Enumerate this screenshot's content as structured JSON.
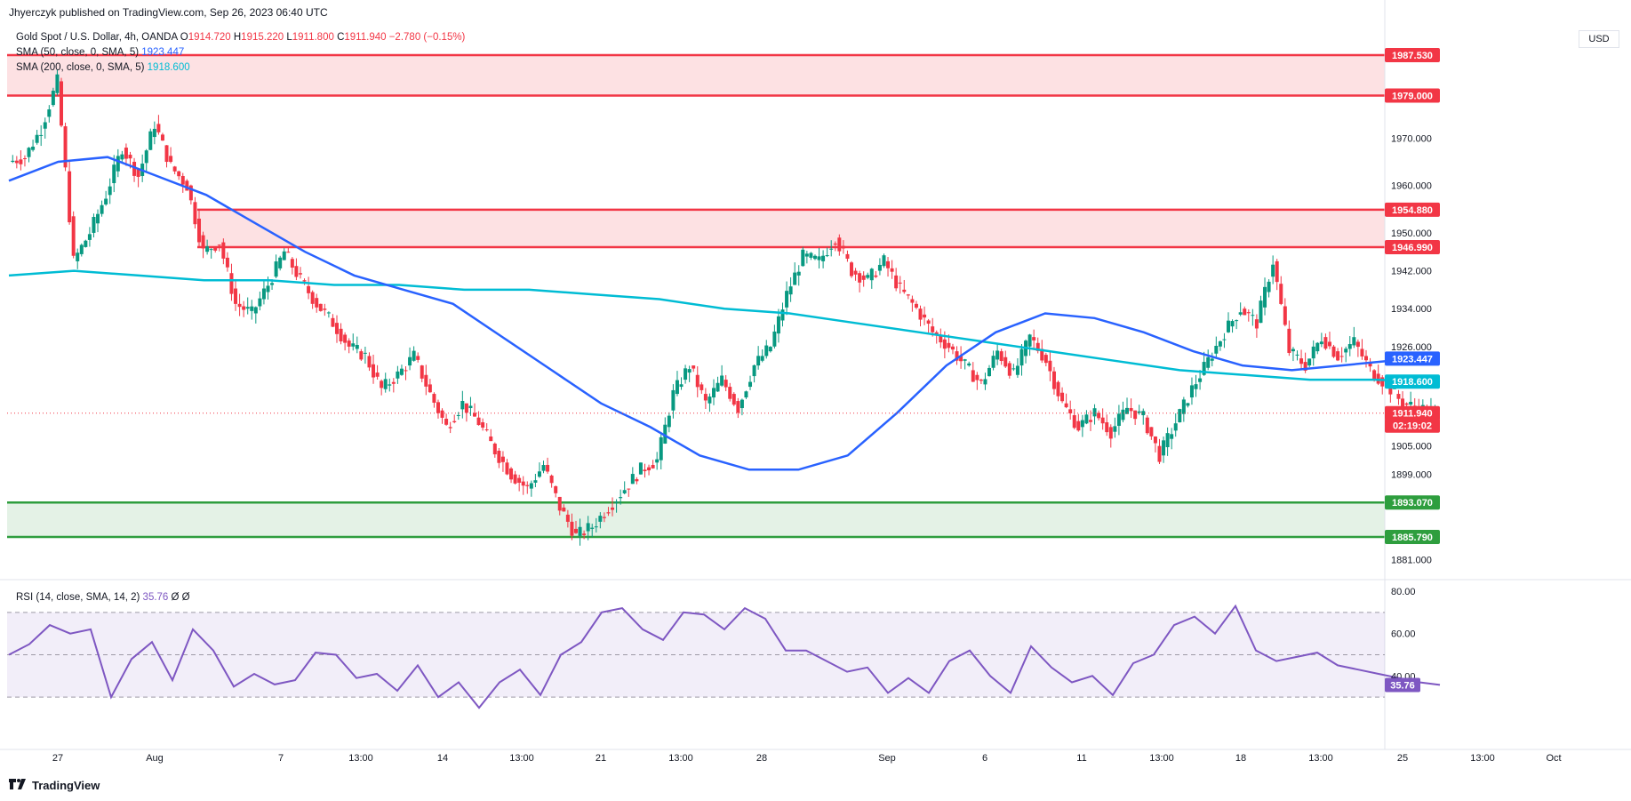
{
  "header": {
    "publisher": "Jhyerczyk published on TradingView.com, Sep 26, 2023 06:40 UTC"
  },
  "legend": {
    "symbol": "Gold Spot / U.S. Dollar, 4h, OANDA",
    "open_label": "O",
    "open": "1914.720",
    "high_label": "H",
    "high": "1915.220",
    "low_label": "L",
    "low": "1911.800",
    "close_label": "C",
    "close": "1911.940",
    "change": "−2.780 (−0.15%)",
    "sma50_label": "SMA (50, close, 0, SMA, 5)",
    "sma50_value": "1923.447",
    "sma200_label": "SMA (200, close, 0, SMA, 5)",
    "sma200_value": "1918.600"
  },
  "rsi_legend": {
    "label": "RSI (14, close, SMA, 14, 2)",
    "value": "35.76",
    "extra": "Ø Ø"
  },
  "currency": "USD",
  "footer": {
    "brand": "TradingView"
  },
  "colors": {
    "resistance": "#f23645",
    "support": "#2e9e3e",
    "sma50": "#2962ff",
    "sma200": "#00bcd4",
    "rsi": "#7e57c2",
    "candle_up": "#089981",
    "candle_down": "#f23645"
  },
  "chart_data": {
    "type": "candlestick",
    "symbol": "XAUUSD",
    "timeframe": "4h",
    "ylim": [
      1876,
      1992
    ],
    "x_ticks": [
      "27",
      "Aug",
      "7",
      "13:00",
      "14",
      "13:00",
      "21",
      "13:00",
      "28",
      "Sep",
      "6",
      "11",
      "13:00",
      "18",
      "13:00",
      "25",
      "13:00",
      "Oct"
    ],
    "y_ticks": [
      "1970.000",
      "1960.000",
      "1950.000",
      "1942.000",
      "1934.000",
      "1926.000",
      "1905.000",
      "1899.000",
      "1881.000"
    ],
    "zones": [
      {
        "type": "resistance",
        "from": 1979.0,
        "to": 1987.53
      },
      {
        "type": "resistance",
        "from": 1946.99,
        "to": 1954.88
      },
      {
        "type": "support",
        "from": 1885.79,
        "to": 1893.07
      }
    ],
    "price_labels": [
      {
        "value": "1987.530",
        "kind": "resistance"
      },
      {
        "value": "1979.000",
        "kind": "resistance"
      },
      {
        "value": "1954.880",
        "kind": "resistance"
      },
      {
        "value": "1946.990",
        "kind": "resistance"
      },
      {
        "value": "1923.447",
        "kind": "sma50"
      },
      {
        "value": "1918.600",
        "kind": "sma200"
      },
      {
        "value": "1911.940",
        "kind": "last"
      },
      {
        "value": "02:19:02",
        "kind": "countdown"
      },
      {
        "value": "1893.070",
        "kind": "support"
      },
      {
        "value": "1885.790",
        "kind": "support"
      }
    ],
    "close_path": [
      1965,
      1966,
      1972,
      1982,
      1944,
      1950,
      1958,
      1968,
      1962,
      1973,
      1964,
      1960,
      1946,
      1948,
      1935,
      1933,
      1939,
      1946,
      1940,
      1935,
      1931,
      1926,
      1924,
      1917,
      1920,
      1924,
      1916,
      1909,
      1914,
      1910,
      1904,
      1899,
      1896,
      1901,
      1892,
      1886,
      1888,
      1892,
      1896,
      1900,
      1902,
      1916,
      1922,
      1914,
      1919,
      1913,
      1922,
      1926,
      1937,
      1945,
      1944,
      1949,
      1942,
      1940,
      1944,
      1938,
      1934,
      1929,
      1926,
      1922,
      1918,
      1925,
      1920,
      1928,
      1923,
      1914,
      1909,
      1912,
      1908,
      1913,
      1911,
      1903,
      1910,
      1917,
      1923,
      1929,
      1934,
      1931,
      1944,
      1925,
      1922,
      1928,
      1924,
      1927,
      1921,
      1918,
      1914,
      1913,
      1912
    ],
    "sma50": [
      1961,
      1965,
      1966,
      1962,
      1958,
      1952,
      1946,
      1941,
      1938,
      1935,
      1928,
      1921,
      1914,
      1909,
      1903,
      1900,
      1900,
      1903,
      1912,
      1922,
      1929,
      1933,
      1932,
      1929,
      1925,
      1922,
      1921,
      1922,
      1923,
      1923
    ],
    "sma200": [
      1941,
      1942,
      1941,
      1940,
      1940,
      1939,
      1939,
      1938,
      1938,
      1937,
      1936,
      1934,
      1933,
      1931,
      1929,
      1927,
      1925,
      1923,
      1921,
      1920,
      1919,
      1919,
      1918.6
    ],
    "rsi": {
      "ylim": [
        20,
        80
      ],
      "y_ticks": [
        "80.00",
        "60.00",
        "40.00"
      ],
      "levels": [
        70,
        50,
        30
      ],
      "values": [
        50,
        55,
        64,
        60,
        62,
        30,
        48,
        56,
        38,
        62,
        52,
        35,
        41,
        36,
        38,
        51,
        50,
        39,
        41,
        33,
        45,
        30,
        37,
        25,
        37,
        43,
        31,
        50,
        56,
        70,
        72,
        62,
        57,
        70,
        69,
        62,
        72,
        67,
        52,
        52,
        47,
        42,
        44,
        32,
        39,
        32,
        47,
        52,
        40,
        32,
        54,
        44,
        37,
        40,
        31,
        46,
        50,
        64,
        68,
        60,
        73,
        52,
        47,
        49,
        51,
        45,
        43,
        41,
        39,
        37,
        35.76
      ],
      "last": "35.76"
    }
  }
}
